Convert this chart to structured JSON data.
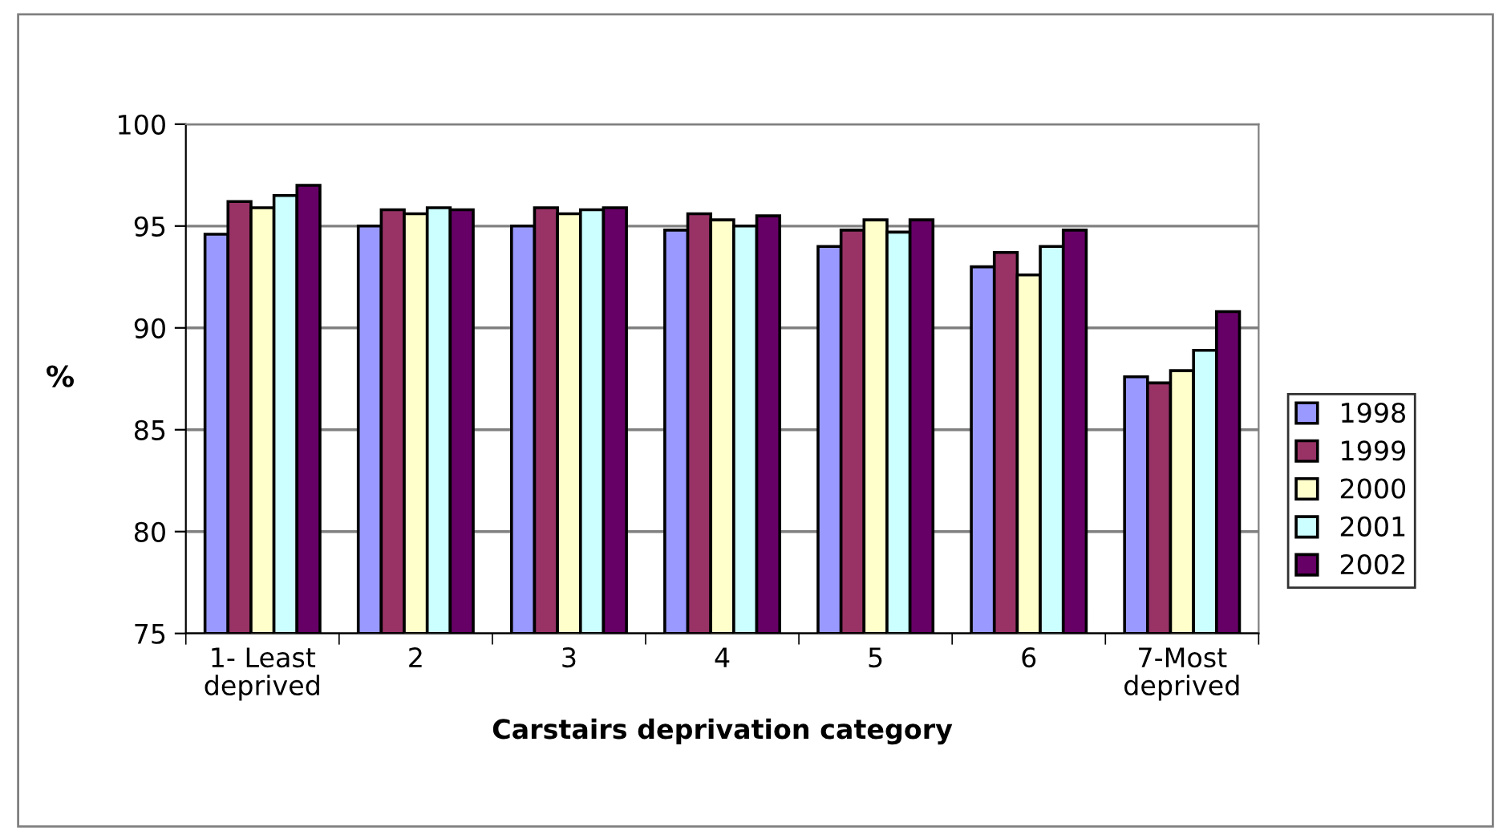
{
  "chart_data": {
    "type": "bar",
    "xlabel": "Carstairs deprivation category",
    "ylabel": "%",
    "categories": [
      "1- Least\ndeprived",
      "2",
      "3",
      "4",
      "5",
      "6",
      "7-Most\ndeprived"
    ],
    "series": [
      {
        "name": "1998",
        "color": "#9999ff",
        "values": [
          94.6,
          95.0,
          95.0,
          94.8,
          94.0,
          93.0,
          87.6
        ]
      },
      {
        "name": "1999",
        "color": "#993366",
        "values": [
          96.2,
          95.8,
          95.9,
          95.6,
          94.8,
          93.7,
          87.3
        ]
      },
      {
        "name": "2000",
        "color": "#ffffcc",
        "values": [
          95.9,
          95.6,
          95.6,
          95.3,
          95.3,
          92.6,
          87.9
        ]
      },
      {
        "name": "2001",
        "color": "#ccffff",
        "values": [
          96.5,
          95.9,
          95.8,
          95.0,
          94.7,
          94.0,
          88.9
        ]
      },
      {
        "name": "2002",
        "color": "#660066",
        "values": [
          97.0,
          95.8,
          95.9,
          95.5,
          95.3,
          94.8,
          90.8
        ]
      }
    ],
    "ylim": [
      75,
      100
    ],
    "yticks": [
      75,
      80,
      85,
      90,
      95,
      100
    ],
    "grid": "y",
    "legend": "right"
  }
}
